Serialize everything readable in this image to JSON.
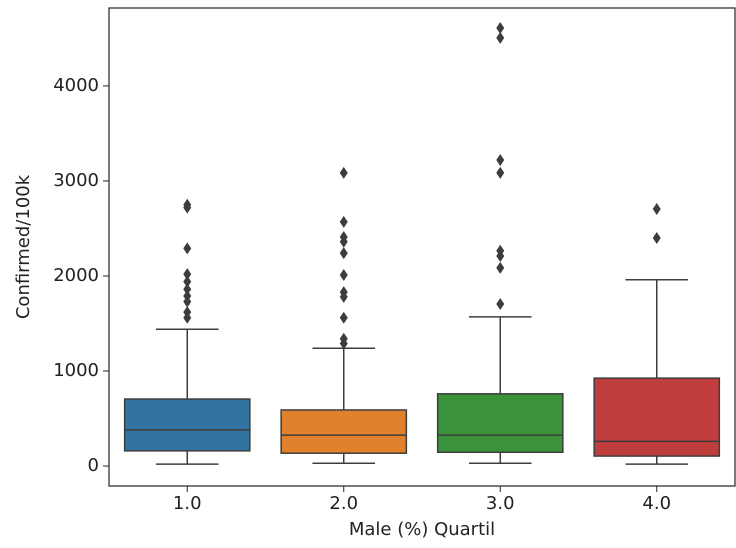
{
  "chart_data": {
    "type": "box",
    "x_label": "Male (%) Quartil",
    "y_label": "Confirmed/100k",
    "categories": [
      "1.0",
      "2.0",
      "3.0",
      "4.0"
    ],
    "colors": [
      "#3274a1",
      "#e1812c",
      "#3a923a",
      "#c03d3e"
    ],
    "boxes": [
      {
        "whisker_low": 20,
        "q1": 160,
        "median": 380,
        "q3": 705,
        "whisker_high": 1440,
        "outliers": [
          2750,
          2720,
          2290,
          2020,
          1940,
          1860,
          1790,
          1730,
          1620,
          1560
        ]
      },
      {
        "whisker_low": 30,
        "q1": 135,
        "median": 325,
        "q3": 590,
        "whisker_high": 1240,
        "outliers": [
          3085,
          2570,
          2410,
          2360,
          2240,
          2010,
          1830,
          1780,
          1560,
          1340,
          1290
        ]
      },
      {
        "whisker_low": 30,
        "q1": 145,
        "median": 325,
        "q3": 760,
        "whisker_high": 1570,
        "outliers": [
          4610,
          4505,
          3220,
          3085,
          2265,
          2210,
          2085,
          1705
        ]
      },
      {
        "whisker_low": 20,
        "q1": 105,
        "median": 260,
        "q3": 925,
        "whisker_high": 1960,
        "outliers": [
          2705,
          2400
        ]
      }
    ],
    "ylim": [
      -210,
      4820
    ],
    "yticks": [
      0,
      1000,
      2000,
      3000,
      4000
    ]
  }
}
